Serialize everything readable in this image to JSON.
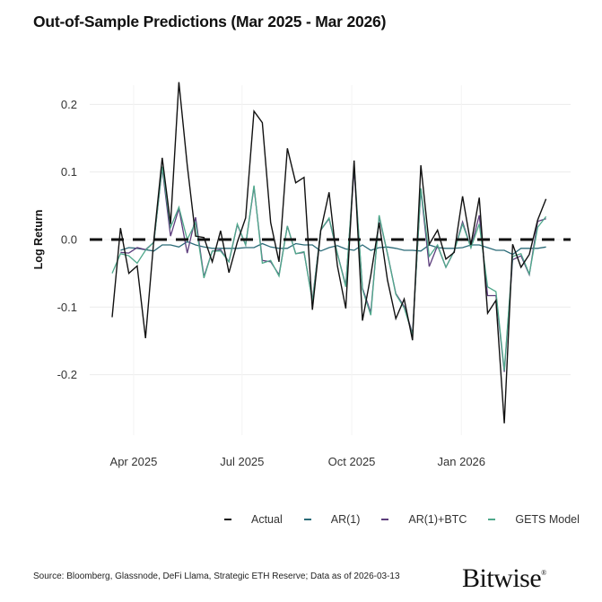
{
  "title": "Out-of-Sample Predictions (Mar 2025 - Mar 2026)",
  "source": "Source: Bloomberg, Glassnode, DeFi Llama, Strategic ETH Reserve; Data as of 2026-03-13",
  "logo_text": "Bitwise",
  "chart_data": {
    "type": "line",
    "title": "Out-of-Sample Predictions (Mar 2025 - Mar 2026)",
    "xlabel": "",
    "ylabel": "Log Return",
    "ylim": [
      -0.3,
      0.25
    ],
    "yticks": [
      0.2,
      0.1,
      0.0,
      -0.1,
      -0.2
    ],
    "ytick_labels": [
      "0.2",
      "0.1",
      "0.0",
      "-0.1",
      "-0.2"
    ],
    "xticks": [
      "2025-04-01",
      "2025-07-01",
      "2025-10-01",
      "2026-01-01"
    ],
    "xtick_labels": [
      "Apr 2025",
      "Jul 2025",
      "Oct 2025",
      "Jan 2026"
    ],
    "grid": true,
    "legend_position": "bottom",
    "reference_line": {
      "y": 0,
      "style": "dashed",
      "color": "#111111"
    },
    "x": [
      "2025-03-14",
      "2025-03-21",
      "2025-03-28",
      "2025-04-04",
      "2025-04-11",
      "2025-04-18",
      "2025-04-25",
      "2025-05-02",
      "2025-05-09",
      "2025-05-16",
      "2025-05-23",
      "2025-05-30",
      "2025-06-06",
      "2025-06-13",
      "2025-06-20",
      "2025-06-27",
      "2025-07-04",
      "2025-07-11",
      "2025-07-18",
      "2025-07-25",
      "2025-08-01",
      "2025-08-08",
      "2025-08-15",
      "2025-08-22",
      "2025-08-29",
      "2025-09-05",
      "2025-09-12",
      "2025-09-19",
      "2025-09-26",
      "2025-10-03",
      "2025-10-10",
      "2025-10-17",
      "2025-10-24",
      "2025-10-31",
      "2025-11-07",
      "2025-11-14",
      "2025-11-21",
      "2025-11-28",
      "2025-12-05",
      "2025-12-12",
      "2025-12-19",
      "2025-12-26",
      "2026-01-02",
      "2026-01-09",
      "2026-01-16",
      "2026-01-23",
      "2026-01-30",
      "2026-02-06",
      "2026-02-13",
      "2026-02-20",
      "2026-02-27",
      "2026-03-06",
      "2026-03-13"
    ],
    "series": [
      {
        "name": "Actual",
        "color": "#111111",
        "values": [
          -0.115,
          0.017,
          -0.05,
          -0.039,
          -0.146,
          0.0,
          0.121,
          0.023,
          0.233,
          0.11,
          0.005,
          0.003,
          -0.033,
          0.013,
          -0.049,
          -0.004,
          0.032,
          0.19,
          0.173,
          0.025,
          -0.033,
          0.135,
          0.084,
          0.092,
          -0.104,
          0.013,
          0.07,
          -0.039,
          -0.102,
          0.117,
          -0.12,
          -0.053,
          0.025,
          -0.06,
          -0.117,
          -0.088,
          -0.149,
          0.11,
          -0.007,
          0.014,
          -0.029,
          -0.019,
          0.064,
          -0.008,
          0.062,
          -0.109,
          -0.09,
          -0.272,
          -0.007,
          -0.041,
          -0.022,
          0.029,
          0.06
        ]
      },
      {
        "name": "AR(1)",
        "color": "#2b6b78",
        "values": [
          null,
          -0.016,
          -0.012,
          -0.013,
          -0.015,
          -0.017,
          -0.008,
          -0.008,
          -0.011,
          -0.003,
          -0.008,
          -0.011,
          -0.013,
          -0.013,
          -0.013,
          -0.013,
          -0.012,
          -0.012,
          -0.006,
          -0.011,
          -0.013,
          -0.013,
          -0.006,
          -0.008,
          -0.008,
          -0.017,
          -0.012,
          -0.009,
          -0.014,
          -0.016,
          -0.008,
          -0.016,
          -0.012,
          -0.011,
          -0.013,
          -0.016,
          -0.016,
          -0.017,
          -0.008,
          -0.012,
          -0.013,
          -0.013,
          -0.012,
          -0.008,
          -0.008,
          -0.012,
          -0.016,
          -0.016,
          -0.022,
          -0.013,
          -0.013,
          -0.013,
          -0.011
        ]
      },
      {
        "name": "AR(1)+BTC",
        "color": "#5c3d7c",
        "values": [
          null,
          -0.019,
          -0.02,
          -0.012,
          -0.015,
          -0.004,
          0.106,
          0.005,
          0.046,
          -0.02,
          0.033,
          -0.055,
          -0.017,
          -0.015,
          -0.033,
          0.022,
          -0.008,
          0.078,
          -0.031,
          -0.033,
          -0.052,
          0.02,
          -0.021,
          -0.019,
          -0.09,
          0.014,
          0.031,
          -0.021,
          -0.068,
          0.103,
          -0.072,
          -0.108,
          0.034,
          -0.021,
          -0.08,
          -0.099,
          -0.139,
          0.074,
          -0.04,
          -0.009,
          -0.041,
          -0.017,
          0.026,
          -0.012,
          0.036,
          -0.083,
          -0.083,
          -0.196,
          -0.03,
          -0.024,
          -0.052,
          0.027,
          0.031
        ]
      },
      {
        "name": "GETS Model",
        "color": "#4fa88b",
        "values": [
          -0.05,
          -0.021,
          -0.024,
          -0.035,
          -0.016,
          -0.004,
          0.108,
          0.018,
          0.048,
          0.0,
          0.025,
          -0.057,
          -0.017,
          -0.017,
          -0.033,
          0.023,
          -0.008,
          0.08,
          -0.035,
          -0.031,
          -0.054,
          0.02,
          -0.021,
          -0.018,
          -0.092,
          0.014,
          0.032,
          -0.021,
          -0.07,
          0.111,
          -0.074,
          -0.112,
          0.036,
          -0.021,
          -0.081,
          -0.101,
          -0.141,
          0.076,
          -0.025,
          -0.008,
          -0.041,
          -0.017,
          0.023,
          -0.012,
          0.023,
          -0.07,
          -0.077,
          -0.194,
          -0.025,
          -0.021,
          -0.051,
          0.018,
          0.034
        ]
      }
    ]
  }
}
